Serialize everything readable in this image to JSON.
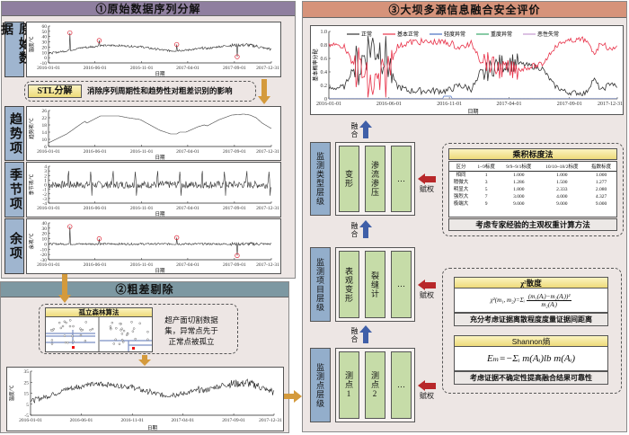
{
  "panel1": {
    "title": "①原始数据序列分解",
    "rows": [
      {
        "label": "原始数据"
      },
      {
        "label": "趋势项"
      },
      {
        "label": "季节项"
      },
      {
        "label": "余项"
      }
    ],
    "stl_button": "STL分解",
    "stl_text": "消除序列周期性和趋势性对粗差识别的影响"
  },
  "charts": {
    "x_ticks": [
      "2016-01-01",
      "2016-06-01",
      "2016-11-01",
      "2017-04-01",
      "2017-09-01",
      "2017-12-31"
    ],
    "x_label": "日期",
    "raw": {
      "ylabel": "温度/℃",
      "yticks": [
        60,
        50,
        40,
        30,
        20,
        10,
        0,
        -10
      ],
      "ylim": [
        -10,
        60
      ]
    },
    "trend": {
      "ylabel": "趋势项/℃",
      "yticks": [
        26,
        22,
        18,
        14,
        10,
        6
      ],
      "ylim": [
        6,
        26
      ]
    },
    "season": {
      "ylabel": "季节项/℃",
      "yticks": [
        4,
        3,
        2,
        1,
        0,
        -1,
        -2,
        -3,
        -4
      ],
      "ylim": [
        -4,
        4
      ]
    },
    "residual": {
      "ylabel": "余项/℃",
      "yticks": [
        40,
        30,
        20,
        10,
        0,
        -10,
        -20,
        -30
      ],
      "ylim": [
        -30,
        40
      ]
    },
    "cleaned": {
      "ylabel": "温度/℃",
      "yticks": [
        35,
        25,
        15,
        5,
        -5
      ],
      "ylim": [
        -5,
        35
      ]
    },
    "fusion": {
      "ylabel": "基本概率分配",
      "yticks": [
        "1.0",
        "0.8",
        "0.6",
        "0.4",
        "0.2",
        "0"
      ],
      "ylim": [
        0,
        1
      ],
      "legend": [
        {
          "name": "正常",
          "color": "#333333"
        },
        {
          "name": "基本正常",
          "color": "#e8334a"
        },
        {
          "name": "轻度异常",
          "color": "#4a6fc0"
        },
        {
          "name": "重度异常",
          "color": "#3aa86a"
        },
        {
          "name": "恶性失常",
          "color": "#c49ad0"
        }
      ]
    }
  },
  "panel2": {
    "title": "②粗差剔除",
    "iforest_title": "孤立森林算法",
    "description": [
      "超产面切割数据",
      "集，异常点先于",
      "正常点被孤立"
    ]
  },
  "panel3": {
    "title": "③大坝多源信息融合安全评价",
    "fuse_label": "融合",
    "weight_label": "赋权",
    "levels": [
      {
        "label": "监测类型层级",
        "cells": [
          "变形",
          "渗流渗压",
          "…"
        ]
      },
      {
        "label": "监测项目层级",
        "cells": [
          "表观变形",
          "裂缝计",
          "…"
        ]
      },
      {
        "label": "监测点层级",
        "cells": [
          "测点1",
          "测点2",
          "…"
        ]
      }
    ],
    "scale": {
      "title": "乘积标度法",
      "headers": [
        "区分",
        "1~9标度",
        "9/9~9/1标度",
        "10/10~18/2标度",
        "指数标度"
      ],
      "rows": [
        [
          "相同",
          "1",
          "1.000",
          "1.000",
          "1.000"
        ],
        [
          "稍微大",
          "3",
          "1.286",
          "1.500",
          "1.277"
        ],
        [
          "明显大",
          "5",
          "1.800",
          "2.333",
          "2.080"
        ],
        [
          "强烈大",
          "7",
          "3.000",
          "4.000",
          "4.327"
        ],
        [
          "极端大",
          "9",
          "9.000",
          "9.000",
          "9.000"
        ]
      ],
      "caption": "考虑专家经验的主观权重计算方法"
    },
    "chi": {
      "title": "χ²散度",
      "lhs": "χ²(m₁, m₂)=Σᵢ",
      "numerator": "(m₁(Aᵢ)−m₂(Aᵢ))²",
      "denominator": "m₂(Aᵢ)",
      "caption": "充分考虑证据离散程度度量证据间距离"
    },
    "shannon": {
      "title": "Shannon熵",
      "formula": "Eₘ=−Σᵢ m(Aᵢ)lb m(Aᵢ)",
      "caption": "考虑证据不确定性提高融合结果可靠性"
    }
  },
  "colors": {
    "panel1_header": "#8f7f9f",
    "panel2_header": "#7d98a2",
    "panel3_header": "#d6937a",
    "orange": "#d49a3c",
    "blue_arrow": "#3f5fa8",
    "red_arrow": "#b8282a"
  }
}
